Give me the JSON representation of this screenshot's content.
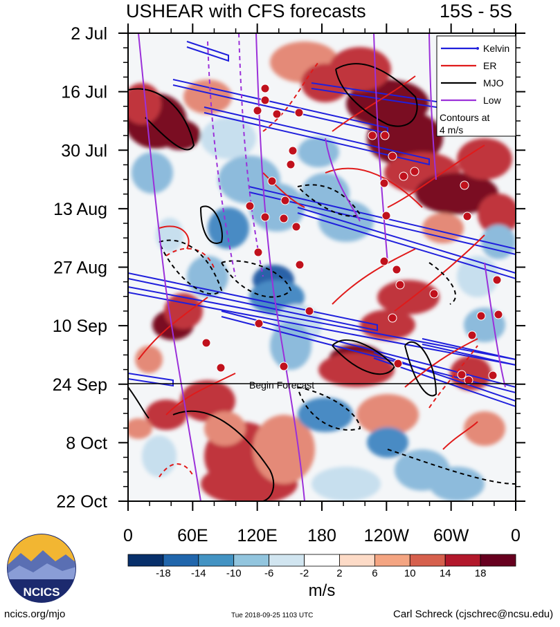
{
  "chart_data": {
    "type": "heatmap",
    "title": "USHEAR with CFS forecasts",
    "title_right": "15S - 5S",
    "y_ticks": [
      "2 Jul",
      "16 Jul",
      "30 Jul",
      "13 Aug",
      "27 Aug",
      "10 Sep",
      "24 Sep",
      "8 Oct",
      "22 Oct"
    ],
    "x_ticks": [
      "0",
      "60E",
      "120E",
      "180",
      "120W",
      "60W",
      "0"
    ],
    "x_range_deg": [
      0,
      360
    ],
    "y_range": [
      "2018-07-02",
      "2018-10-22"
    ],
    "forecast_line": {
      "date": "2018-09-24",
      "label": "Begin Forecast"
    },
    "colorbar": {
      "levels": [
        "-18",
        "-14",
        "-10",
        "-6",
        "-2",
        "2",
        "6",
        "10",
        "14",
        "18"
      ],
      "colors": [
        "#08306b",
        "#2166ac",
        "#4393c3",
        "#92c5de",
        "#d1e5f0",
        "#ffffff",
        "#fddbc7",
        "#f4a582",
        "#d6604d",
        "#b2182b",
        "#67001f"
      ],
      "unit": "m/s"
    },
    "legend": {
      "position": "top-right",
      "entries": [
        {
          "label": "Kelvin",
          "color": "#1f1fdc"
        },
        {
          "label": "ER",
          "color": "#e01a1a"
        },
        {
          "label": "MJO",
          "color": "#000000"
        },
        {
          "label": "Low",
          "color": "#9b30d9"
        }
      ],
      "note_line1": "Contours at",
      "note_line2": "4 m/s"
    }
  },
  "branding": {
    "logo_text": "NCICS"
  },
  "footer": {
    "left": "ncics.org/mjo",
    "center": "Tue 2018-09-25 1103 UTC",
    "right": "Carl Schreck (cjschrec@ncsu.edu)"
  }
}
